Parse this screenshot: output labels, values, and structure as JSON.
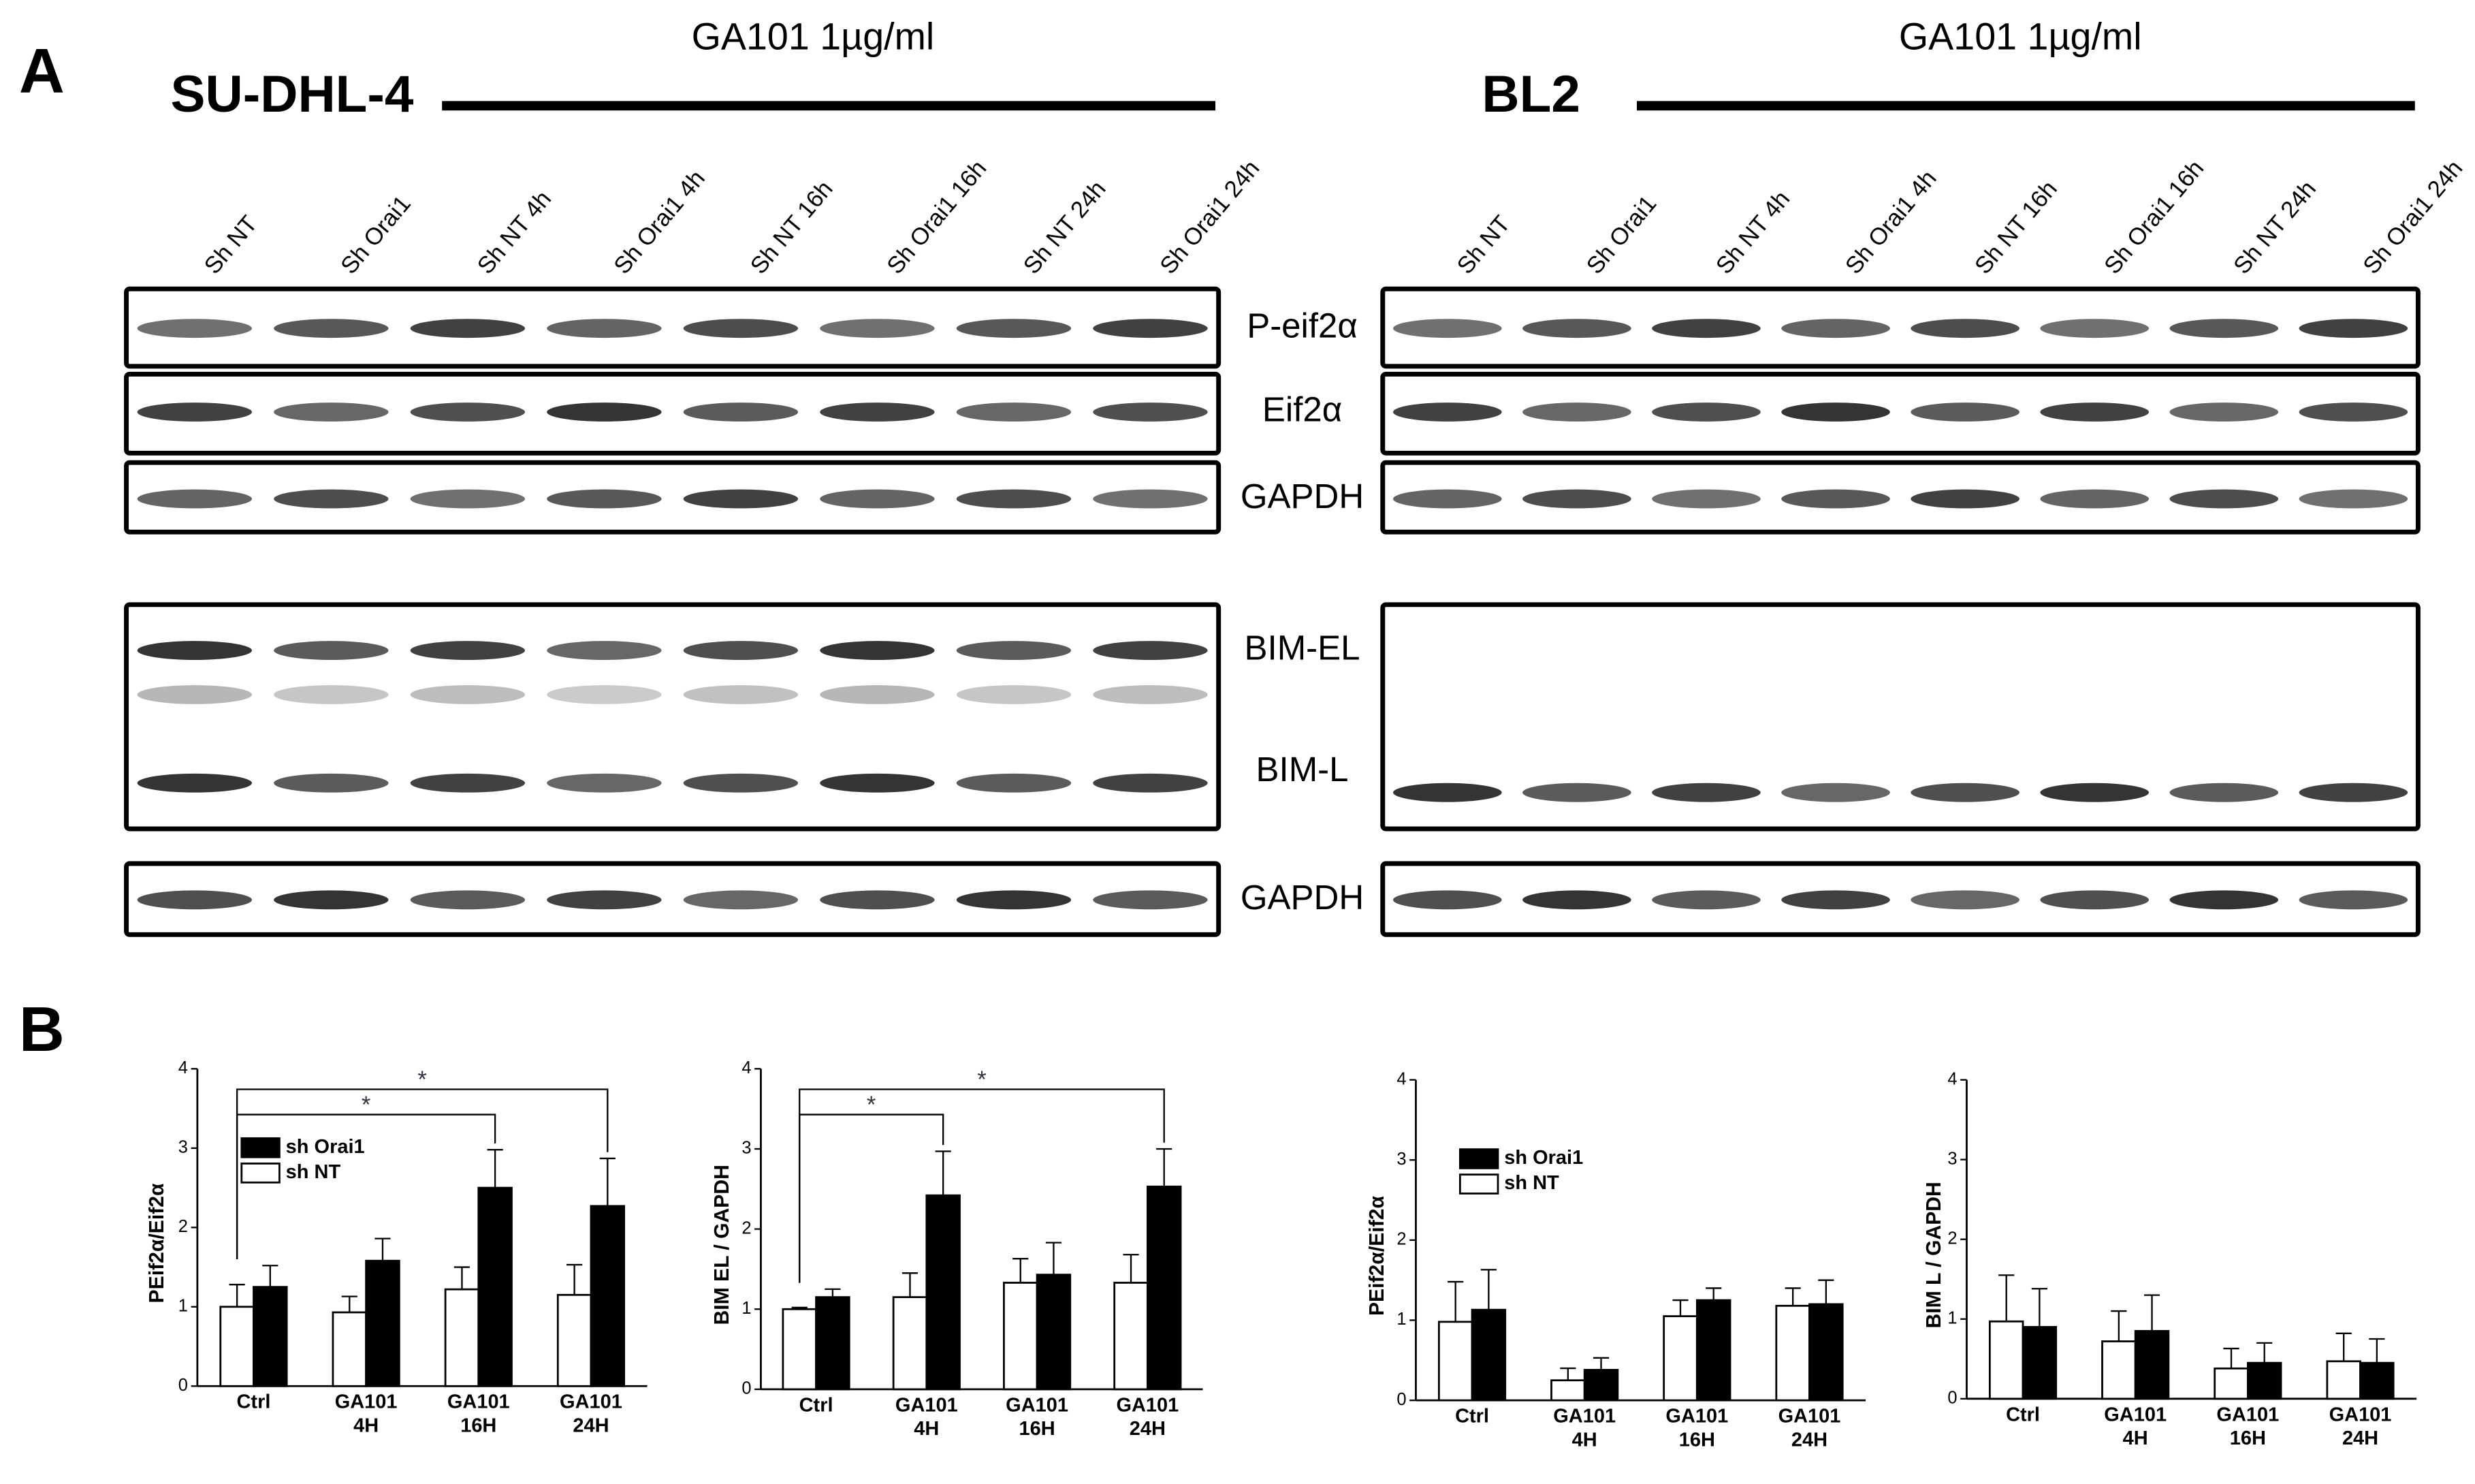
{
  "panel_a": "A",
  "panel_b": "B",
  "blots": [
    {
      "cell_line": "SU-DHL-4",
      "treatment": "GA101 1µg/ml",
      "lanes": [
        "Sh NT",
        "Sh Orai1",
        "Sh NT 4h",
        "Sh Orai1 4h",
        "Sh NT 16h",
        "Sh Orai1 16h",
        "Sh NT 24h",
        "Sh Orai1 24h"
      ]
    },
    {
      "cell_line": "BL2",
      "treatment": "GA101 1µg/ml",
      "lanes": [
        "Sh NT",
        "Sh Orai1",
        "Sh NT 4h",
        "Sh Orai1 4h",
        "Sh NT 16h",
        "Sh Orai1 16h",
        "Sh NT 24h",
        "Sh Orai1 24h"
      ]
    }
  ],
  "proteins": [
    "P-eif2α",
    "Eif2α",
    "GAPDH",
    "BIM-EL",
    "BIM-L",
    "GAPDH"
  ],
  "chart_data": [
    {
      "type": "bar",
      "ylabel": "PEif2α/Eif2α",
      "categories": [
        "Ctrl",
        "GA101 4H",
        "GA101 16H",
        "GA101 24H"
      ],
      "series": [
        {
          "name": "sh NT",
          "color": "#ffffff",
          "values": [
            1.0,
            0.93,
            1.22,
            1.15
          ],
          "errors": [
            0.28,
            0.2,
            0.28,
            0.38
          ]
        },
        {
          "name": "sh Orai1",
          "color": "#000000",
          "values": [
            1.25,
            1.58,
            2.5,
            2.27
          ],
          "errors": [
            0.27,
            0.28,
            0.48,
            0.6
          ]
        }
      ],
      "ylim": [
        0,
        4
      ],
      "yticks": [
        0,
        1,
        2,
        3,
        4
      ],
      "legend": true,
      "significance": [
        {
          "label": "*",
          "categories": [
            "Ctrl",
            "GA101 16H"
          ]
        },
        {
          "label": "*",
          "categories": [
            "Ctrl",
            "GA101 24H"
          ]
        }
      ]
    },
    {
      "type": "bar",
      "ylabel": "BIM EL / GAPDH",
      "categories": [
        "Ctrl",
        "GA101 4H",
        "GA101 16H",
        "GA101 24H"
      ],
      "series": [
        {
          "name": "sh NT",
          "color": "#ffffff",
          "values": [
            1.0,
            1.15,
            1.33,
            1.33
          ],
          "errors": [
            0.02,
            0.3,
            0.3,
            0.35
          ]
        },
        {
          "name": "sh Orai1",
          "color": "#000000",
          "values": [
            1.15,
            2.42,
            1.43,
            2.53
          ],
          "errors": [
            0.1,
            0.55,
            0.4,
            0.47
          ]
        }
      ],
      "ylim": [
        0,
        4
      ],
      "yticks": [
        0,
        1,
        2,
        3,
        4
      ],
      "legend": false,
      "significance": [
        {
          "label": "*",
          "categories": [
            "Ctrl",
            "GA101 4H"
          ]
        },
        {
          "label": "*",
          "categories": [
            "Ctrl",
            "GA101 24H"
          ]
        }
      ]
    },
    {
      "type": "bar",
      "ylabel": "PEif2α/Eif2α",
      "categories": [
        "Ctrl",
        "GA101 4H",
        "GA101 16H",
        "GA101 24H"
      ],
      "series": [
        {
          "name": "sh NT",
          "color": "#ffffff",
          "values": [
            0.98,
            0.25,
            1.05,
            1.18
          ],
          "errors": [
            0.5,
            0.15,
            0.2,
            0.22
          ]
        },
        {
          "name": "sh Orai1",
          "color": "#000000",
          "values": [
            1.13,
            0.38,
            1.25,
            1.2
          ],
          "errors": [
            0.5,
            0.15,
            0.15,
            0.3
          ]
        }
      ],
      "ylim": [
        0,
        4
      ],
      "yticks": [
        0,
        1,
        2,
        3,
        4
      ],
      "legend": true,
      "significance": []
    },
    {
      "type": "bar",
      "ylabel": "BIM L / GAPDH",
      "categories": [
        "Ctrl",
        "GA101 4H",
        "GA101 16H",
        "GA101 24H"
      ],
      "series": [
        {
          "name": "sh NT",
          "color": "#ffffff",
          "values": [
            0.97,
            0.72,
            0.38,
            0.47
          ],
          "errors": [
            0.58,
            0.38,
            0.25,
            0.35
          ]
        },
        {
          "name": "sh Orai1",
          "color": "#000000",
          "values": [
            0.9,
            0.85,
            0.45,
            0.45
          ],
          "errors": [
            0.48,
            0.45,
            0.25,
            0.3
          ]
        }
      ],
      "ylim": [
        0,
        4
      ],
      "yticks": [
        0,
        1,
        2,
        3,
        4
      ],
      "legend": false,
      "significance": []
    }
  ]
}
